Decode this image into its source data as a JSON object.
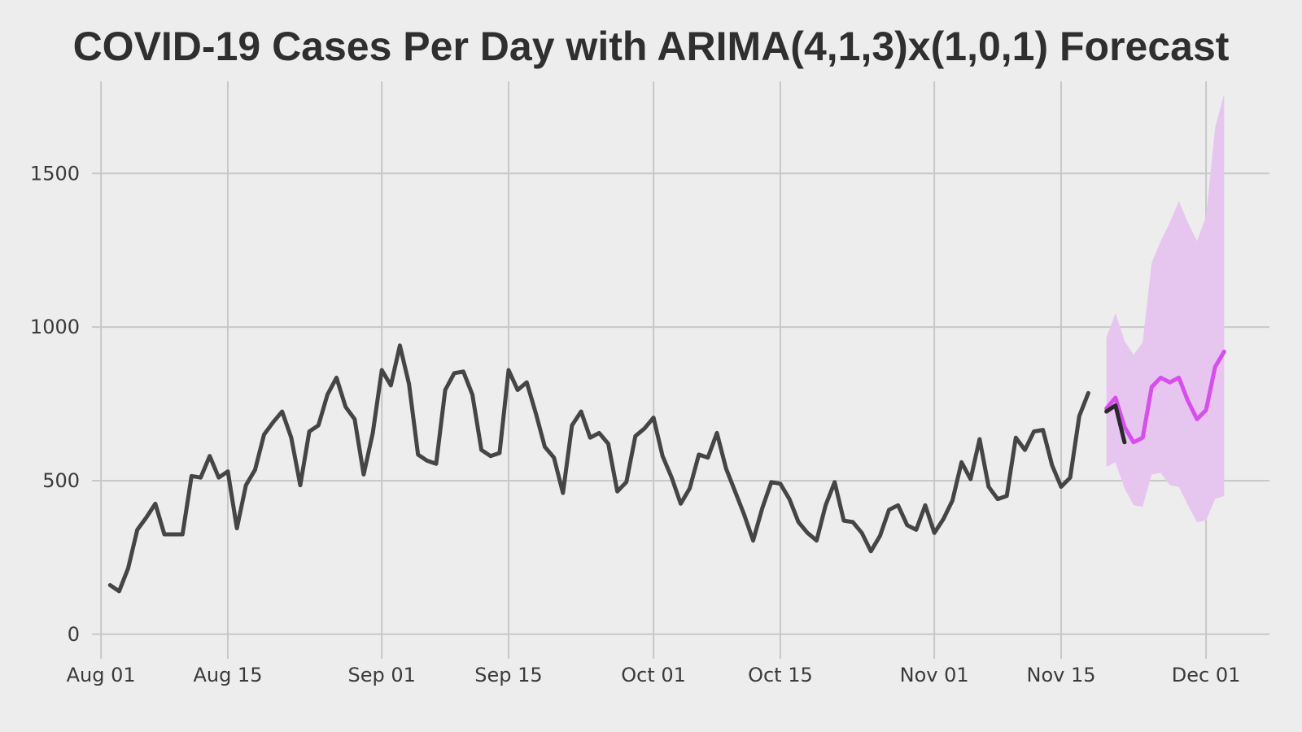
{
  "title": "COVID-19 Cases Per Day with ARIMA(4,1,3)x(1,0,1) Forecast",
  "colors": {
    "background": "#ededed",
    "grid": "#c8c8c8",
    "observed_line": "#454545",
    "forecast_line": "#d94cf2",
    "forecast_band": "#e6c6ef"
  },
  "chart_data": {
    "type": "line",
    "title": "COVID-19 Cases Per Day with ARIMA(4,1,3)x(1,0,1) Forecast",
    "xlabel": "",
    "ylabel": "",
    "xlim": [
      "2020-07-31",
      "2020-12-08"
    ],
    "ylim": [
      -80,
      1800
    ],
    "grid": true,
    "legend": "none",
    "x_ticks": [
      {
        "date": "2020-08-01",
        "label": "Aug 01"
      },
      {
        "date": "2020-08-15",
        "label": "Aug 15"
      },
      {
        "date": "2020-09-01",
        "label": "Sep 01"
      },
      {
        "date": "2020-09-15",
        "label": "Sep 15"
      },
      {
        "date": "2020-10-01",
        "label": "Oct 01"
      },
      {
        "date": "2020-10-15",
        "label": "Oct 15"
      },
      {
        "date": "2020-11-01",
        "label": "Nov 01"
      },
      {
        "date": "2020-11-15",
        "label": "Nov 15"
      },
      {
        "date": "2020-12-01",
        "label": "Dec 01"
      }
    ],
    "y_ticks": [
      {
        "value": 0,
        "label": "0"
      },
      {
        "value": 500,
        "label": "500"
      },
      {
        "value": 1000,
        "label": "1000"
      },
      {
        "value": 1500,
        "label": "1500"
      }
    ],
    "series": [
      {
        "role": "observed",
        "x": [
          "2020-08-02",
          "2020-08-03",
          "2020-08-04",
          "2020-08-05",
          "2020-08-06",
          "2020-08-07",
          "2020-08-08",
          "2020-08-09",
          "2020-08-10",
          "2020-08-11",
          "2020-08-12",
          "2020-08-13",
          "2020-08-14",
          "2020-08-15",
          "2020-08-16",
          "2020-08-17",
          "2020-08-18",
          "2020-08-19",
          "2020-08-20",
          "2020-08-21",
          "2020-08-22",
          "2020-08-23",
          "2020-08-24",
          "2020-08-25",
          "2020-08-26",
          "2020-08-27",
          "2020-08-28",
          "2020-08-29",
          "2020-08-30",
          "2020-08-31",
          "2020-09-01",
          "2020-09-02",
          "2020-09-03",
          "2020-09-04",
          "2020-09-05",
          "2020-09-06",
          "2020-09-07",
          "2020-09-08",
          "2020-09-09",
          "2020-09-10",
          "2020-09-11",
          "2020-09-12",
          "2020-09-13",
          "2020-09-14",
          "2020-09-15",
          "2020-09-16",
          "2020-09-17",
          "2020-09-18",
          "2020-09-19",
          "2020-09-20",
          "2020-09-21",
          "2020-09-22",
          "2020-09-23",
          "2020-09-24",
          "2020-09-25",
          "2020-09-26",
          "2020-09-27",
          "2020-09-28",
          "2020-09-29",
          "2020-09-30",
          "2020-10-01",
          "2020-10-02",
          "2020-10-03",
          "2020-10-04",
          "2020-10-05",
          "2020-10-06",
          "2020-10-07",
          "2020-10-08",
          "2020-10-09",
          "2020-10-10",
          "2020-10-11",
          "2020-10-12",
          "2020-10-13",
          "2020-10-14",
          "2020-10-15",
          "2020-10-16",
          "2020-10-17",
          "2020-10-18",
          "2020-10-19",
          "2020-10-20",
          "2020-10-21",
          "2020-10-22",
          "2020-10-23",
          "2020-10-24",
          "2020-10-25",
          "2020-10-26",
          "2020-10-27",
          "2020-10-28",
          "2020-10-29",
          "2020-10-30",
          "2020-10-31",
          "2020-11-01",
          "2020-11-02",
          "2020-11-03",
          "2020-11-04",
          "2020-11-05",
          "2020-11-06",
          "2020-11-07",
          "2020-11-08",
          "2020-11-09",
          "2020-11-10",
          "2020-11-11",
          "2020-11-12",
          "2020-11-13",
          "2020-11-14",
          "2020-11-15",
          "2020-11-16",
          "2020-11-17",
          "2020-11-18",
          "2020-11-19"
        ],
        "values": [
          160,
          140,
          215,
          340,
          380,
          425,
          325,
          325,
          325,
          515,
          510,
          580,
          510,
          530,
          345,
          485,
          535,
          650,
          690,
          725,
          640,
          485,
          660,
          680,
          780,
          835,
          740,
          700,
          520,
          655,
          860,
          810,
          940,
          815,
          585,
          565,
          555,
          795,
          850,
          855,
          780,
          600,
          580,
          590,
          860,
          795,
          820,
          720,
          610,
          575,
          460,
          680,
          725,
          640,
          655,
          620,
          465,
          495,
          645,
          670,
          705,
          580,
          510,
          425,
          475,
          585,
          575,
          655,
          540,
          465,
          390,
          305,
          410,
          495,
          490,
          440,
          365,
          330,
          305,
          420,
          495,
          370,
          365,
          330,
          270,
          320,
          405,
          420,
          355,
          340,
          420,
          330,
          375,
          435,
          560,
          505,
          635,
          480,
          440,
          450,
          640,
          600,
          660,
          665,
          550,
          480,
          510,
          710,
          785,
          null
        ]
      },
      {
        "role": "observed-recent",
        "x": [
          "2020-11-20",
          "2020-11-21",
          "2020-11-22"
        ],
        "values": [
          725,
          745,
          625
        ]
      },
      {
        "role": "forecast",
        "x": [
          "2020-11-20",
          "2020-11-21",
          "2020-11-22",
          "2020-11-23",
          "2020-11-24",
          "2020-11-25",
          "2020-11-26",
          "2020-11-27",
          "2020-11-28",
          "2020-11-29",
          "2020-11-30",
          "2020-12-01",
          "2020-12-02"
        ],
        "values": [
          735,
          770,
          675,
          625,
          640,
          805,
          835,
          820,
          835,
          760,
          700,
          730,
          870
        ],
        "lower": [
          545,
          560,
          475,
          420,
          415,
          520,
          525,
          485,
          480,
          420,
          365,
          370,
          440
        ],
        "upper": [
          965,
          1045,
          955,
          910,
          950,
          1210,
          1280,
          1340,
          1410,
          1340,
          1280,
          1360,
          1650
        ]
      }
    ],
    "band_tail": {
      "x": "2020-12-03",
      "values": [
        920
      ],
      "lower": [
        450
      ],
      "upper": [
        1760
      ]
    }
  }
}
